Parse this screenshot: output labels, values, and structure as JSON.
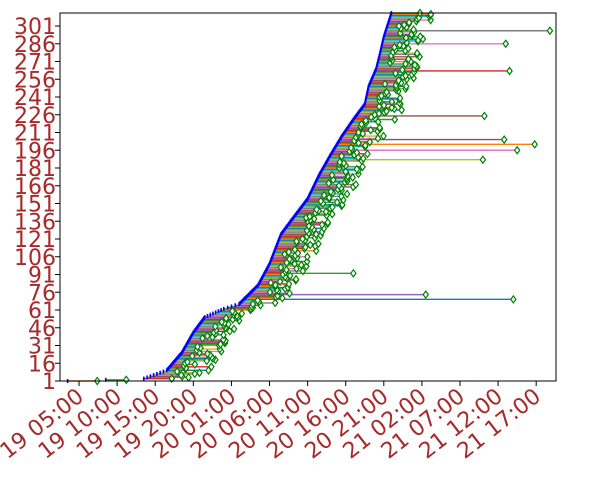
{
  "chart_data": {
    "type": "timeline",
    "title": "",
    "xlabel": "",
    "ylabel": "",
    "grid": false,
    "legend": "none",
    "x_axis": {
      "unit": "hours from day 19 00:00",
      "range": [
        2.5,
        67.6
      ],
      "ticks": [
        {
          "value": 5,
          "label": "19 05:00"
        },
        {
          "value": 10,
          "label": "19 10:00"
        },
        {
          "value": 15,
          "label": "19 15:00"
        },
        {
          "value": 20,
          "label": "19 20:00"
        },
        {
          "value": 25,
          "label": "20 01:00"
        },
        {
          "value": 30,
          "label": "20 06:00"
        },
        {
          "value": 35,
          "label": "20 11:00"
        },
        {
          "value": 40,
          "label": "20 16:00"
        },
        {
          "value": 45,
          "label": "20 21:00"
        },
        {
          "value": 50,
          "label": "21 02:00"
        },
        {
          "value": 55,
          "label": "21 07:00"
        },
        {
          "value": 60,
          "label": "21 12:00"
        },
        {
          "value": 65,
          "label": "21 17:00"
        }
      ]
    },
    "y_axis": {
      "range": [
        1,
        312
      ],
      "ticks": [
        1,
        16,
        31,
        46,
        61,
        76,
        91,
        106,
        121,
        136,
        151,
        166,
        181,
        196,
        211,
        226,
        241,
        256,
        271,
        286,
        301
      ]
    },
    "colors": {
      "start_marker": "#0000ff",
      "end_marker": "#008000",
      "tick_label": "#a52a2a",
      "series_cycle": [
        "#1f77b4",
        "#ff7f0e",
        "#2ca02c",
        "#d62728",
        "#9467bd",
        "#8c564b",
        "#e377c2",
        "#7f7f7f",
        "#bcbd22",
        "#17becf"
      ]
    },
    "start_curve": [
      [
        3.5,
        1
      ],
      [
        13.5,
        3
      ],
      [
        16.5,
        10
      ],
      [
        18.5,
        25
      ],
      [
        20.0,
        42
      ],
      [
        21.5,
        55
      ],
      [
        24.0,
        62
      ],
      [
        26.0,
        66
      ],
      [
        28.5,
        82
      ],
      [
        30.0,
        100
      ],
      [
        31.5,
        125
      ],
      [
        33.0,
        138
      ],
      [
        35.0,
        155
      ],
      [
        36.5,
        175
      ],
      [
        38.0,
        192
      ],
      [
        39.5,
        208
      ],
      [
        41.0,
        222
      ],
      [
        42.5,
        235
      ],
      [
        43.0,
        250
      ],
      [
        44.0,
        265
      ],
      [
        44.5,
        278
      ],
      [
        45.0,
        292
      ],
      [
        46.0,
        312
      ]
    ],
    "long_intervals": [
      {
        "index": 70,
        "end": 62.0
      },
      {
        "index": 74,
        "end": 50.5
      },
      {
        "index": 92,
        "end": 41.0
      },
      {
        "index": 188,
        "end": 58.0
      },
      {
        "index": 196,
        "end": 62.5
      },
      {
        "index": 201,
        "end": 64.8
      },
      {
        "index": 205,
        "end": 60.8
      },
      {
        "index": 214,
        "end": 44.5
      },
      {
        "index": 225,
        "end": 58.2
      },
      {
        "index": 263,
        "end": 61.5
      },
      {
        "index": 286,
        "end": 61.0
      },
      {
        "index": 297,
        "end": 66.8
      }
    ]
  }
}
